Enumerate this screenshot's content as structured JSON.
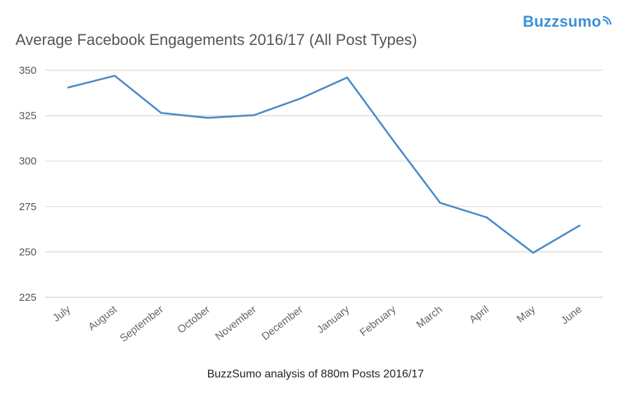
{
  "brand": {
    "name": "Buzzsumo",
    "color": "#3d8fd8"
  },
  "chart_data": {
    "type": "line",
    "title": "Average Facebook Engagements 2016/17 (All Post Types)",
    "subtitle": "BuzzSumo analysis of 880m Posts 2016/17",
    "xlabel": "",
    "ylabel": "",
    "categories": [
      "July",
      "August",
      "September",
      "October",
      "November",
      "December",
      "January",
      "February",
      "March",
      "April",
      "May",
      "June"
    ],
    "series": [
      {
        "values": [
          340.5,
          347,
          326.5,
          323.8,
          325.3,
          334.5,
          346,
          311,
          277,
          269,
          249.5,
          264.5
        ]
      }
    ],
    "yticks": [
      225,
      250,
      275,
      300,
      325,
      350
    ],
    "ylim": [
      225,
      350
    ],
    "grid": true,
    "line_color": "#4a8ac7",
    "grid_color": "#d9d9d9"
  }
}
